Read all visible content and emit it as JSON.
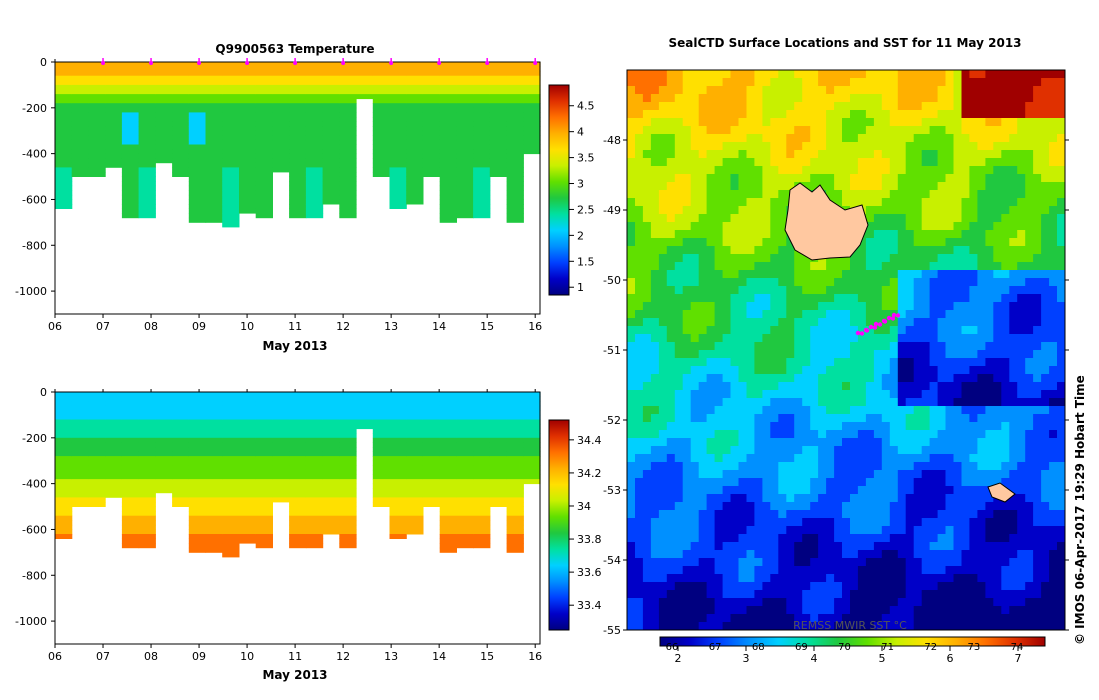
{
  "colors": {
    "cmap": [
      "#000080",
      "#0000c8",
      "#0040ff",
      "#0090ff",
      "#00d0ff",
      "#00e0a0",
      "#20c840",
      "#60e000",
      "#c8f000",
      "#ffe000",
      "#ffb000",
      "#ff7000",
      "#e03000",
      "#a00000"
    ],
    "tick_magenta": "#ff00ff",
    "land": "#ffc8a0"
  },
  "chart_data": [
    {
      "type": "heatmap",
      "title": "Q9900563  Temperature",
      "xlabel": "May 2013",
      "xlim": [
        6,
        16.1
      ],
      "xticks": [
        "06",
        "07",
        "08",
        "09",
        "10",
        "11",
        "12",
        "13",
        "14",
        "15",
        "16"
      ],
      "ylim": [
        -1100,
        0
      ],
      "yticks": [
        "0",
        "-200",
        "-400",
        "-600",
        "-800",
        "-1000"
      ],
      "colorbar_range": [
        0.85,
        4.9
      ],
      "colorbar_ticks": [
        "1",
        "1.5",
        "2",
        "2.5",
        "3",
        "3.5",
        "4",
        "4.5"
      ],
      "profile_marker_days": [
        7,
        8,
        9,
        10,
        11,
        12,
        13,
        14,
        15,
        16
      ],
      "profile_max_depth_m": [
        -625,
        -500,
        -500,
        -460,
        -680,
        -680,
        -430,
        -500,
        -700,
        -700,
        -710,
        -660,
        -680,
        -480,
        -670,
        -670,
        -620,
        -680,
        -160,
        -500,
        -630,
        -620,
        -500,
        -700,
        -680,
        -680,
        -500,
        -690,
        -400
      ]
    },
    {
      "type": "heatmap",
      "title": "",
      "xlabel": "May 2013",
      "xlim": [
        6,
        16.1
      ],
      "xticks": [
        "06",
        "07",
        "08",
        "09",
        "10",
        "11",
        "12",
        "13",
        "14",
        "15",
        "16"
      ],
      "ylim": [
        -1100,
        0
      ],
      "yticks": [
        "0",
        "-200",
        "-400",
        "-600",
        "-800",
        "-1000"
      ],
      "colorbar_range": [
        33.25,
        34.52
      ],
      "colorbar_ticks": [
        "33.4",
        "33.6",
        "33.8",
        "34",
        "34.2",
        "34.4"
      ]
    },
    {
      "type": "heatmap",
      "title": "SealCTD Surface Locations and SST for 11 May 2013",
      "ylim": [
        -55,
        -47
      ],
      "yticks": [
        "-48",
        "-49",
        "-50",
        "-51",
        "-52",
        "-53",
        "-54",
        "-55"
      ],
      "colorbar_top_ticks": [
        "66",
        "67",
        "68",
        "69",
        "70",
        "71",
        "72",
        "73",
        "74"
      ],
      "colorbar_bottom_ticks": [
        "2",
        "3",
        "4",
        "5",
        "6",
        "7"
      ],
      "colorbar_title": "REMSS MWIR SST °C"
    }
  ],
  "stamp": "© IMOS 06-Apr-2017 19:29 Hobart Time"
}
